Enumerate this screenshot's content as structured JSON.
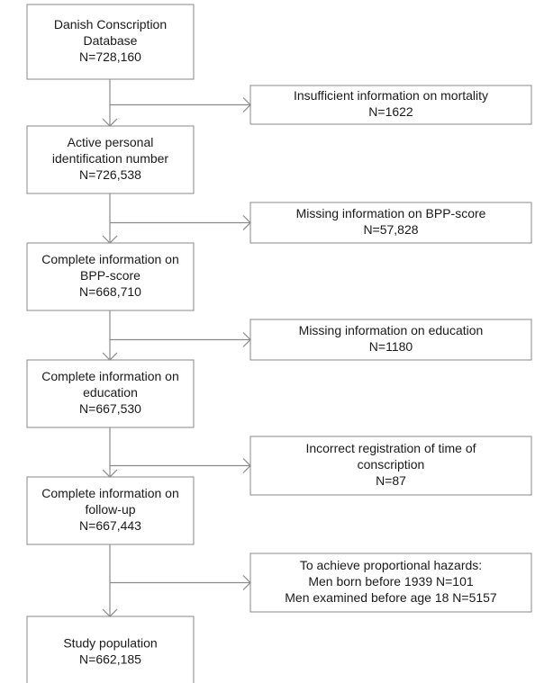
{
  "nodes": [
    {
      "lines": [
        "Danish Conscription",
        "Database",
        "N=728,160"
      ]
    },
    {
      "lines": [
        "Active personal",
        "identification number",
        "N=726,538"
      ]
    },
    {
      "lines": [
        "Complete information on",
        "BPP-score",
        "N=668,710"
      ]
    },
    {
      "lines": [
        "Complete information on",
        "education",
        "N=667,530"
      ]
    },
    {
      "lines": [
        "Complete information on",
        "follow-up",
        "N=667,443"
      ]
    },
    {
      "lines": [
        "Study population",
        "N=662,185"
      ]
    }
  ],
  "exclusions": [
    {
      "lines": [
        "Insufficient information on mortality",
        "N=1622"
      ]
    },
    {
      "lines": [
        "Missing information on BPP-score",
        "N=57,828"
      ]
    },
    {
      "lines": [
        "Missing information on education",
        "N=1180"
      ]
    },
    {
      "lines": [
        "Incorrect registration of time of",
        "conscription",
        "N=87"
      ]
    },
    {
      "lines": [
        "To achieve proportional hazards:",
        "Men born before 1939 N=101",
        "Men examined before age 18 N=5157"
      ]
    }
  ]
}
